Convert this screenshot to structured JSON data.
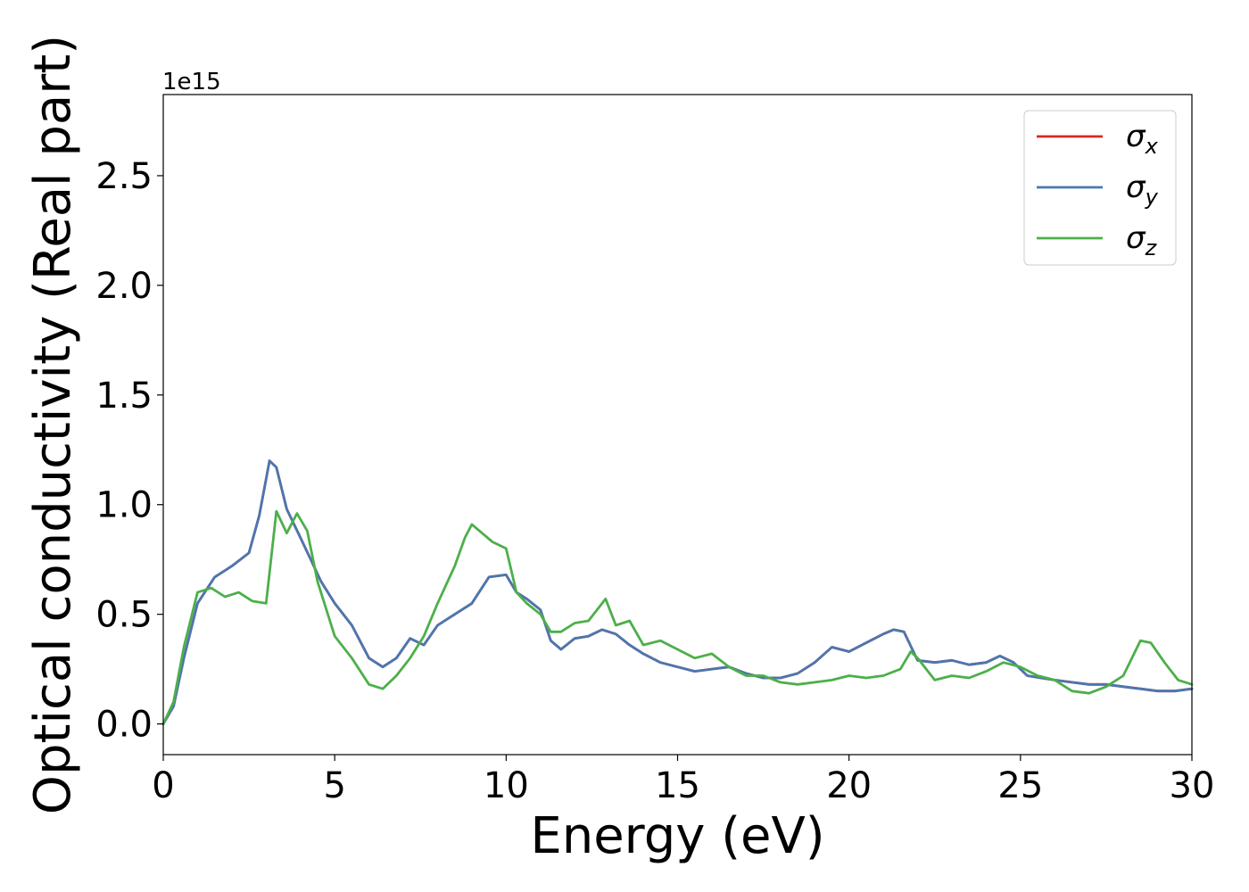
{
  "chart_data": {
    "type": "line",
    "xlabel": "Energy (eV)",
    "ylabel": "Optical conductivity (Real part)",
    "y_offset_text": "1e15",
    "xlim": [
      0,
      30
    ],
    "ylim": [
      -0.14,
      2.87
    ],
    "xticks": [
      0,
      5,
      10,
      15,
      20,
      25,
      30
    ],
    "xtick_labels": [
      "0",
      "5",
      "10",
      "15",
      "20",
      "25",
      "30"
    ],
    "yticks": [
      0.0,
      0.5,
      1.0,
      1.5,
      2.0,
      2.5
    ],
    "ytick_labels": [
      "0.0",
      "0.5",
      "1.0",
      "1.5",
      "2.0",
      "2.5"
    ],
    "grid": false,
    "legend_position": "upper right",
    "series": [
      {
        "name": "σx",
        "symbol": "σ",
        "sub": "x",
        "color": "#d62728",
        "x": [
          0,
          0.3,
          0.6,
          1.0,
          1.5,
          2.0,
          2.5,
          2.8,
          3.1,
          3.3,
          3.6,
          4.0,
          4.3,
          4.6,
          5.0,
          5.5,
          6.0,
          6.4,
          6.8,
          7.2,
          7.6,
          8.0,
          8.5,
          9.0,
          9.5,
          10.0,
          10.3,
          10.6,
          11.0,
          11.3,
          11.6,
          12.0,
          12.4,
          12.8,
          13.2,
          13.6,
          14.0,
          14.5,
          15.0,
          15.5,
          16.0,
          16.5,
          17.0,
          17.5,
          18.0,
          18.5,
          19.0,
          19.5,
          20.0,
          20.5,
          21.0,
          21.3,
          21.6,
          22.0,
          22.5,
          23.0,
          23.5,
          24.0,
          24.4,
          24.8,
          25.2,
          25.6,
          26.0,
          26.5,
          27.0,
          27.5,
          28.0,
          28.5,
          29.0,
          29.5,
          30.0
        ],
        "y": [
          0.0,
          0.08,
          0.3,
          0.55,
          0.67,
          0.72,
          0.78,
          0.95,
          1.2,
          1.17,
          0.98,
          0.85,
          0.75,
          0.65,
          0.55,
          0.45,
          0.3,
          0.26,
          0.3,
          0.39,
          0.36,
          0.45,
          0.5,
          0.55,
          0.67,
          0.68,
          0.6,
          0.57,
          0.52,
          0.38,
          0.34,
          0.39,
          0.4,
          0.43,
          0.41,
          0.36,
          0.32,
          0.28,
          0.26,
          0.24,
          0.25,
          0.26,
          0.23,
          0.21,
          0.21,
          0.23,
          0.28,
          0.35,
          0.33,
          0.37,
          0.41,
          0.43,
          0.42,
          0.29,
          0.28,
          0.29,
          0.27,
          0.28,
          0.31,
          0.28,
          0.22,
          0.21,
          0.2,
          0.19,
          0.18,
          0.18,
          0.17,
          0.16,
          0.15,
          0.15,
          0.16
        ]
      },
      {
        "name": "σy",
        "symbol": "σ",
        "sub": "y",
        "color": "#4a77b0",
        "x": [
          0,
          0.3,
          0.6,
          1.0,
          1.5,
          2.0,
          2.5,
          2.8,
          3.1,
          3.3,
          3.6,
          4.0,
          4.3,
          4.6,
          5.0,
          5.5,
          6.0,
          6.4,
          6.8,
          7.2,
          7.6,
          8.0,
          8.5,
          9.0,
          9.5,
          10.0,
          10.3,
          10.6,
          11.0,
          11.3,
          11.6,
          12.0,
          12.4,
          12.8,
          13.2,
          13.6,
          14.0,
          14.5,
          15.0,
          15.5,
          16.0,
          16.5,
          17.0,
          17.5,
          18.0,
          18.5,
          19.0,
          19.5,
          20.0,
          20.5,
          21.0,
          21.3,
          21.6,
          22.0,
          22.5,
          23.0,
          23.5,
          24.0,
          24.4,
          24.8,
          25.2,
          25.6,
          26.0,
          26.5,
          27.0,
          27.5,
          28.0,
          28.5,
          29.0,
          29.5,
          30.0
        ],
        "y": [
          0.0,
          0.08,
          0.3,
          0.55,
          0.67,
          0.72,
          0.78,
          0.95,
          1.2,
          1.17,
          0.98,
          0.85,
          0.75,
          0.65,
          0.55,
          0.45,
          0.3,
          0.26,
          0.3,
          0.39,
          0.36,
          0.45,
          0.5,
          0.55,
          0.67,
          0.68,
          0.6,
          0.57,
          0.52,
          0.38,
          0.34,
          0.39,
          0.4,
          0.43,
          0.41,
          0.36,
          0.32,
          0.28,
          0.26,
          0.24,
          0.25,
          0.26,
          0.23,
          0.21,
          0.21,
          0.23,
          0.28,
          0.35,
          0.33,
          0.37,
          0.41,
          0.43,
          0.42,
          0.29,
          0.28,
          0.29,
          0.27,
          0.28,
          0.31,
          0.28,
          0.22,
          0.21,
          0.2,
          0.19,
          0.18,
          0.18,
          0.17,
          0.16,
          0.15,
          0.15,
          0.16
        ]
      },
      {
        "name": "σz",
        "symbol": "σ",
        "sub": "z",
        "color": "#4daf4a",
        "x": [
          0,
          0.3,
          0.6,
          1.0,
          1.4,
          1.8,
          2.2,
          2.6,
          3.0,
          3.3,
          3.6,
          3.9,
          4.2,
          4.5,
          5.0,
          5.5,
          6.0,
          6.4,
          6.8,
          7.2,
          7.6,
          8.0,
          8.5,
          8.8,
          9.0,
          9.3,
          9.6,
          10.0,
          10.3,
          10.6,
          11.0,
          11.3,
          11.6,
          12.0,
          12.4,
          12.9,
          13.2,
          13.6,
          14.0,
          14.5,
          15.0,
          15.5,
          16.0,
          16.5,
          17.0,
          17.5,
          18.0,
          18.5,
          19.0,
          19.5,
          20.0,
          20.5,
          21.0,
          21.5,
          21.8,
          22.0,
          22.5,
          23.0,
          23.5,
          24.0,
          24.5,
          25.0,
          25.5,
          26.0,
          26.5,
          27.0,
          27.5,
          28.0,
          28.5,
          28.8,
          29.2,
          29.6,
          30.0
        ],
        "y": [
          0.0,
          0.1,
          0.35,
          0.6,
          0.62,
          0.58,
          0.6,
          0.56,
          0.55,
          0.97,
          0.87,
          0.96,
          0.88,
          0.65,
          0.4,
          0.3,
          0.18,
          0.16,
          0.22,
          0.3,
          0.4,
          0.55,
          0.72,
          0.85,
          0.91,
          0.87,
          0.83,
          0.8,
          0.6,
          0.55,
          0.5,
          0.42,
          0.42,
          0.46,
          0.47,
          0.57,
          0.45,
          0.47,
          0.36,
          0.38,
          0.34,
          0.3,
          0.32,
          0.26,
          0.22,
          0.22,
          0.19,
          0.18,
          0.19,
          0.2,
          0.22,
          0.21,
          0.22,
          0.25,
          0.33,
          0.3,
          0.2,
          0.22,
          0.21,
          0.24,
          0.28,
          0.26,
          0.22,
          0.2,
          0.15,
          0.14,
          0.17,
          0.22,
          0.38,
          0.37,
          0.28,
          0.2,
          0.18
        ]
      }
    ]
  }
}
